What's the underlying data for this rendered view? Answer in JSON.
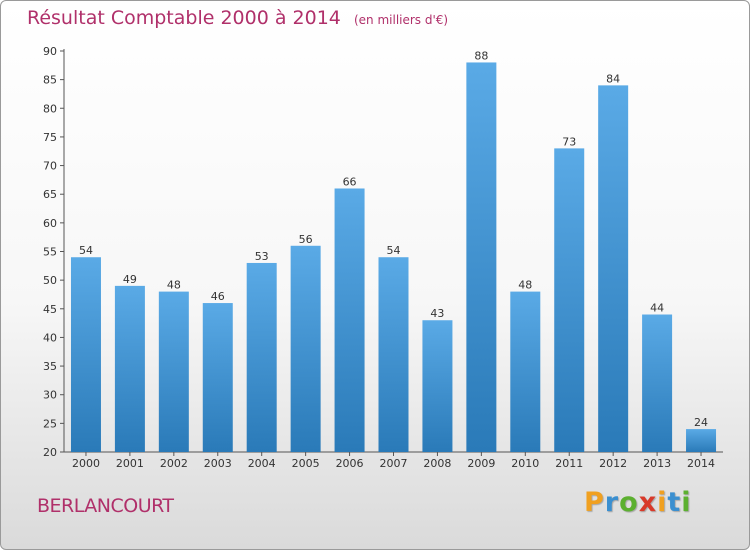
{
  "chart_data": {
    "type": "bar",
    "title": "Résultat Comptable 2000 à 2014",
    "unit_note": "(en milliers d'€)",
    "categories": [
      "2000",
      "2001",
      "2002",
      "2003",
      "2004",
      "2005",
      "2006",
      "2007",
      "2008",
      "2009",
      "2010",
      "2011",
      "2012",
      "2013",
      "2014"
    ],
    "values": [
      54,
      49,
      48,
      46,
      53,
      56,
      66,
      54,
      43,
      88,
      48,
      73,
      84,
      44,
      24
    ],
    "ylim": [
      20,
      90
    ],
    "yticks": [
      20,
      25,
      30,
      35,
      40,
      45,
      50,
      55,
      60,
      65,
      70,
      75,
      80,
      85,
      90
    ],
    "grid": false,
    "bar_color_top": "#5aaae6",
    "bar_color_bottom": "#2a7ab8"
  },
  "footer": {
    "commune": "BERLANCOURT",
    "brand_letters": [
      {
        "ch": "P",
        "color": "#f0a020"
      },
      {
        "ch": "r",
        "color": "#3a8fd0"
      },
      {
        "ch": "o",
        "color": "#5cb030"
      },
      {
        "ch": "x",
        "color": "#d83a2a"
      },
      {
        "ch": "i",
        "color": "#f0a020"
      },
      {
        "ch": "t",
        "color": "#3a8fd0"
      },
      {
        "ch": "i",
        "color": "#5cb030"
      }
    ]
  }
}
